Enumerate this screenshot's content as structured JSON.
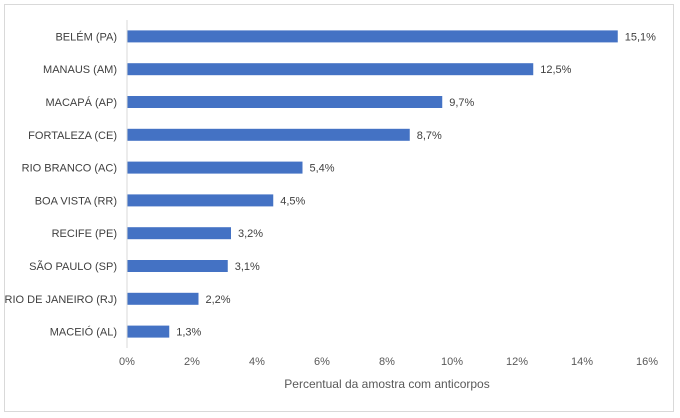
{
  "chart_data": {
    "type": "bar",
    "orientation": "horizontal",
    "categories": [
      "BELÉM (PA)",
      "MANAUS (AM)",
      "MACAPÁ (AP)",
      "FORTALEZA (CE)",
      "RIO BRANCO (AC)",
      "BOA VISTA (RR)",
      "RECIFE (PE)",
      "SÃO PAULO (SP)",
      "RIO DE JANEIRO (RJ)",
      "MACEIÓ (AL)"
    ],
    "values": [
      15.1,
      12.5,
      9.7,
      8.7,
      5.4,
      4.5,
      3.2,
      3.1,
      2.2,
      1.3
    ],
    "value_labels": [
      "15,1%",
      "12,5%",
      "9,7%",
      "8,7%",
      "5,4%",
      "4,5%",
      "3,2%",
      "3,1%",
      "2,2%",
      "1,3%"
    ],
    "xticks": [
      "0%",
      "2%",
      "4%",
      "6%",
      "8%",
      "10%",
      "12%",
      "14%",
      "16%"
    ],
    "xlim": [
      0,
      16
    ],
    "title": "",
    "xlabel": "Percentual da amostra com anticorpos",
    "ylabel": "",
    "grid": false,
    "bar_color": "#4472c4"
  }
}
